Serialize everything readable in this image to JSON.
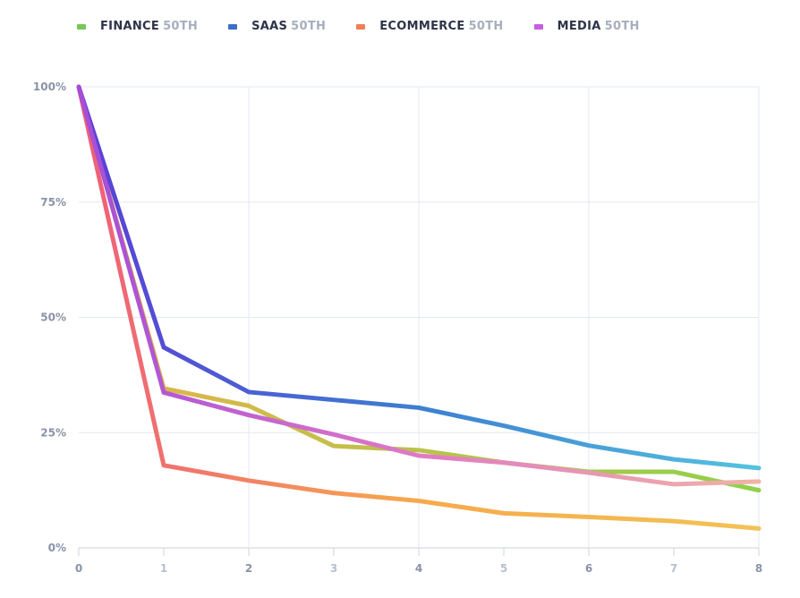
{
  "chart_data": {
    "type": "line",
    "x": [
      0,
      1,
      2,
      3,
      4,
      5,
      6,
      7,
      8
    ],
    "x_tick_labels": [
      "0",
      "1",
      "2",
      "3",
      "4",
      "5",
      "6",
      "7",
      "8"
    ],
    "y_tick_labels": [
      "0%",
      "25%",
      "50%",
      "75%",
      "100%"
    ],
    "y_ticks": [
      0,
      25,
      50,
      75,
      100
    ],
    "ylim": [
      0,
      100
    ],
    "xlim": [
      0,
      8
    ],
    "grid": true,
    "legend_position": "top",
    "series": [
      {
        "name": "FINANCE",
        "suffix": "50TH",
        "values": [
          100,
          34.6,
          30.8,
          22.1,
          21.2,
          18.5,
          16.5,
          16.5,
          12.5
        ],
        "gradient": [
          "#e6b34a",
          "#8ed14a"
        ],
        "swatch": "#78c655"
      },
      {
        "name": "SAAS",
        "suffix": "50TH",
        "values": [
          100,
          43.5,
          33.8,
          32.1,
          30.4,
          26.5,
          22.2,
          19.2,
          17.3
        ],
        "gradient": [
          "#5a3fd6",
          "#3d7fd0",
          "#55c2df"
        ],
        "swatch": "#3b6fc8"
      },
      {
        "name": "ECOMMERCE",
        "suffix": "50TH",
        "values": [
          100,
          17.9,
          14.6,
          11.9,
          10.2,
          7.5,
          6.7,
          5.8,
          4.2
        ],
        "gradient": [
          "#ee5e7a",
          "#f6a94c",
          "#f2c355"
        ],
        "swatch": "#f07e55"
      },
      {
        "name": "MEDIA",
        "suffix": "50TH",
        "values": [
          100,
          33.7,
          28.8,
          24.6,
          20.0,
          18.5,
          16.3,
          13.8,
          14.4
        ],
        "gradient": [
          "#a44dd8",
          "#e07ac5",
          "#f0b3a5"
        ],
        "swatch": "#c55ee0"
      }
    ],
    "colors": {
      "grid": "#e3e8f1",
      "axis": "#cdd3de",
      "tick": "#8a92a8",
      "tick_odd": "#b8bfcd"
    }
  }
}
